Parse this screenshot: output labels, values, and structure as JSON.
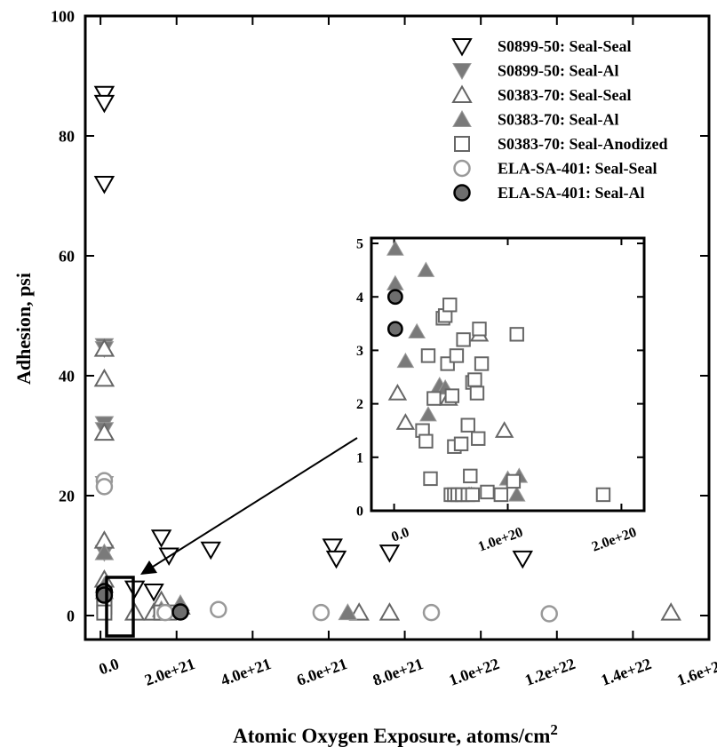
{
  "colors": {
    "open_black": "#000000",
    "gray_fill": "#7a7a7a",
    "gray_stroke": "#666666",
    "light_gray_stroke": "#999999",
    "dark_fill": "#6e6e6e"
  },
  "chart_data": [
    {
      "type": "scatter",
      "id": "main",
      "title": "",
      "xlabel": "Atomic Oxygen Exposure, atoms/cm",
      "xlabel_superscript": "2",
      "ylabel": "Adhesion, psi",
      "xlim": [
        -4e+20,
        1.6e+22
      ],
      "ylim": [
        -4,
        100
      ],
      "xticks": [
        0,
        2e+21,
        4e+21,
        6e+21,
        8e+21,
        1e+22,
        1.2e+22,
        1.4e+22,
        1.6e+22
      ],
      "xtick_labels": [
        "0.0",
        "2.0e+21",
        "4.0e+21",
        "6.0e+21",
        "8.0e+21",
        "1.0e+22",
        "1.2e+22",
        "1.4e+22",
        "1.6e+22"
      ],
      "yticks": [
        0,
        20,
        40,
        60,
        80,
        100
      ],
      "ytick_labels": [
        "0",
        "20",
        "40",
        "60",
        "80",
        "100"
      ],
      "grid": false,
      "legend_position": "top-right",
      "series": [
        {
          "name": "S0899-50: Seal-Seal",
          "marker": "triangle-down-open",
          "x": [
            1e+20,
            1e+20,
            1e+20,
            9e+20,
            1.4e+21,
            1.6e+21,
            1.8e+21,
            2.9e+21,
            6.1e+21,
            6.2e+21,
            7.6e+21,
            1.11e+22
          ],
          "y": [
            87,
            85.5,
            72,
            4.5,
            4,
            13,
            10,
            11,
            11.5,
            9.5,
            10.5,
            9.5
          ]
        },
        {
          "name": "S0899-50: Seal-Al",
          "marker": "triangle-down-filled",
          "x": [
            1e+20,
            1e+20,
            1e+20,
            1e+20,
            1e+20,
            1e+20
          ],
          "y": [
            45,
            44.5,
            32,
            31,
            22,
            10.5
          ]
        },
        {
          "name": "S0383-70: Seal-Seal",
          "marker": "triangle-up-open",
          "x": [
            1e+20,
            1e+20,
            1e+20,
            1e+20,
            1e+20,
            9e+20,
            1.4e+21,
            1.6e+21,
            2.1e+21,
            6.8e+21,
            7.6e+21,
            1.5e+22
          ],
          "y": [
            44.5,
            39.5,
            30.5,
            12.5,
            6,
            0.5,
            0.5,
            2.5,
            1.5,
            0.5,
            0.5,
            0.5
          ]
        },
        {
          "name": "S0383-70: Seal-Al",
          "marker": "triangle-up-filled",
          "x": [
            1e+20,
            1e+20,
            1e+20,
            1.6e+21,
            2.1e+21,
            6.5e+21
          ],
          "y": [
            10.5,
            5,
            4,
            1,
            2,
            0.5
          ]
        },
        {
          "name": "S0383-70: Seal-Anodized",
          "marker": "square-open",
          "x": [
            1e+20,
            1e+20,
            1e+20,
            1e+20,
            1.6e+21,
            1.8e+21
          ],
          "y": [
            3.5,
            2.5,
            1.5,
            0.5,
            0.5,
            0.5
          ]
        },
        {
          "name": "ELA-SA-401: Seal-Seal",
          "marker": "circle-open",
          "x": [
            1e+20,
            1e+20,
            1.7e+21,
            3.1e+21,
            5.8e+21,
            8.7e+21,
            1.18e+22
          ],
          "y": [
            22.5,
            21.5,
            0.5,
            1,
            0.5,
            0.5,
            0.3
          ]
        },
        {
          "name": "ELA-SA-401: Seal-Al",
          "marker": "circle-filled",
          "x": [
            1e+20,
            1e+20,
            2.1e+21
          ],
          "y": [
            4,
            3.4,
            0.6
          ]
        }
      ]
    },
    {
      "type": "scatter",
      "id": "inset",
      "title": "",
      "xlim": [
        -2e+19,
        2.2e+20
      ],
      "ylim": [
        0,
        5.1
      ],
      "xticks": [
        0,
        1e+20,
        2e+20
      ],
      "xtick_labels": [
        "0.0",
        "1.0e+20",
        "2.0e+20"
      ],
      "yticks": [
        0,
        1,
        2,
        3,
        4,
        5
      ],
      "ytick_labels": [
        "0",
        "1",
        "2",
        "3",
        "4",
        "5"
      ],
      "series": [
        {
          "name": "S0383-70: Seal-Seal",
          "marker": "triangle-up-open",
          "x": [
            3e+18,
            1e+19,
            4.8e+19,
            7.5e+19,
            9.7e+19
          ],
          "y": [
            2.2,
            1.65,
            2.1,
            3.3,
            1.5
          ]
        },
        {
          "name": "S0383-70: Seal-Al",
          "marker": "triangle-up-filled",
          "x": [
            1e+18,
            1e+18,
            1e+19,
            2e+19,
            2.8e+19,
            3e+19,
            4e+19,
            4.5e+19,
            6.6e+19,
            6.8e+19,
            1e+20,
            1.08e+20,
            1.1e+20
          ],
          "y": [
            4.9,
            4.25,
            2.8,
            3.35,
            4.5,
            1.8,
            2.35,
            2.3,
            0.3,
            0.3,
            0.6,
            0.3,
            0.65
          ]
        },
        {
          "name": "S0383-70: Seal-Anodized",
          "marker": "square-open",
          "x": [
            2.5e+19,
            2.8e+19,
            3e+19,
            3.2e+19,
            3.5e+19,
            4.3e+19,
            4.5e+19,
            4.7e+19,
            4.9e+19,
            5.1e+19,
            5.3e+19,
            5.5e+19,
            5.9e+19,
            6.1e+19,
            6.5e+19,
            6.7e+19,
            6.9e+19,
            7.1e+19,
            7.3e+19,
            7.5e+19,
            7.7e+19,
            5e+19,
            5.3e+19,
            5.6e+19,
            6e+19,
            6.5e+19,
            6.9e+19,
            7.4e+19,
            8.2e+19,
            9.4e+19,
            1.05e+20,
            1.08e+20,
            1.84e+20
          ],
          "y": [
            1.5,
            1.3,
            2.9,
            0.6,
            2.1,
            3.6,
            3.65,
            2.75,
            3.85,
            2.15,
            1.2,
            2.9,
            1.25,
            3.2,
            1.6,
            0.65,
            2.4,
            2.45,
            2.2,
            3.4,
            2.75,
            0.3,
            0.3,
            0.3,
            0.3,
            0.3,
            0.3,
            1.35,
            0.35,
            0.3,
            0.55,
            3.3,
            0.3
          ]
        },
        {
          "name": "ELA-SA-401: Seal-Al",
          "marker": "circle-filled",
          "x": [
            1e+18,
            1e+18
          ],
          "y": [
            4,
            3.4
          ]
        }
      ]
    }
  ]
}
